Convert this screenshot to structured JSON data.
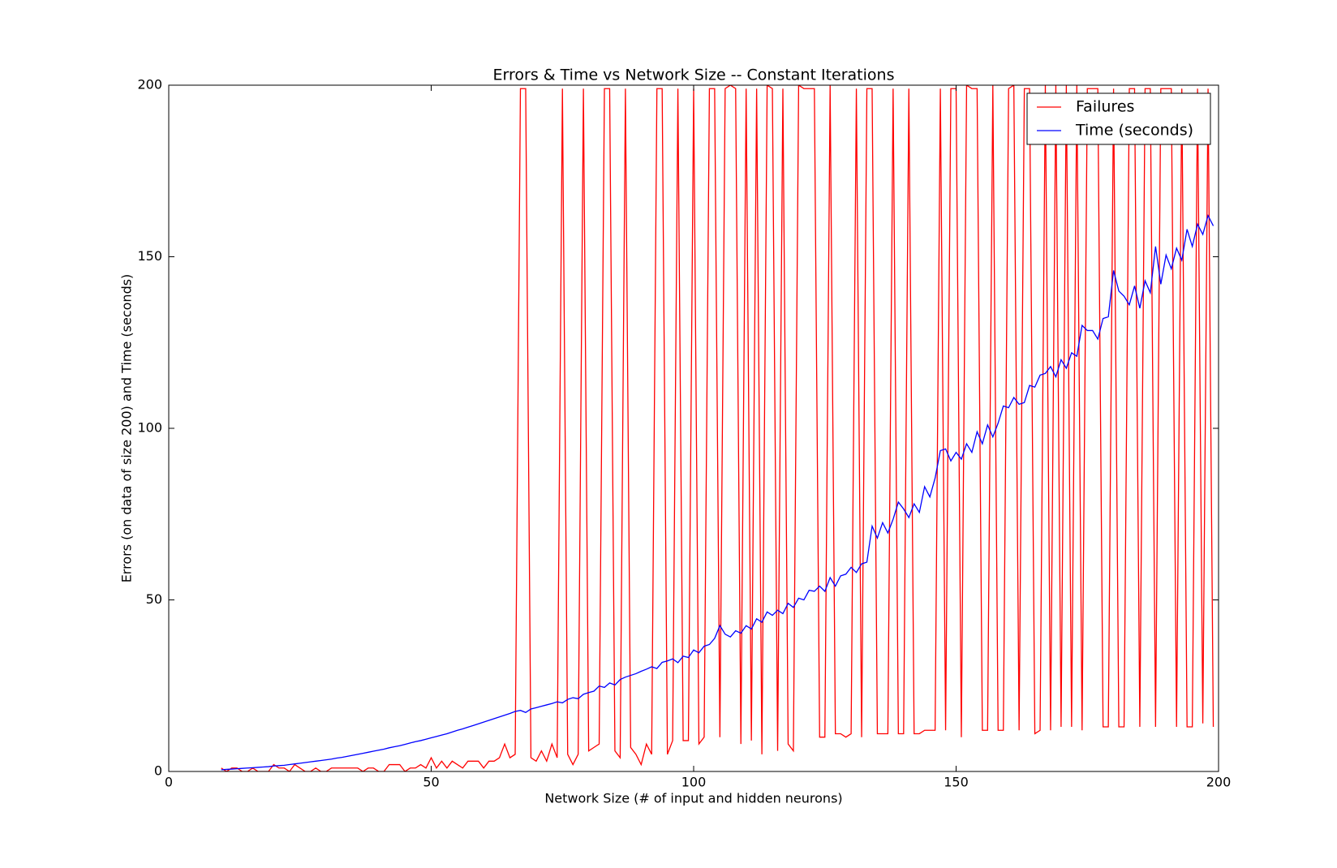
{
  "chart_data": {
    "type": "line",
    "title": "Errors & Time vs Network Size -- Constant Iterations",
    "xlabel": "Network Size (# of input and hidden neurons)",
    "ylabel": "Errors (on data of size 200) and Time (seconds)",
    "x": [
      10,
      11,
      12,
      13,
      14,
      15,
      16,
      17,
      18,
      19,
      20,
      21,
      22,
      23,
      24,
      25,
      26,
      27,
      28,
      29,
      30,
      31,
      32,
      33,
      34,
      35,
      36,
      37,
      38,
      39,
      40,
      41,
      42,
      43,
      44,
      45,
      46,
      47,
      48,
      49,
      50,
      51,
      52,
      53,
      54,
      55,
      56,
      57,
      58,
      59,
      60,
      61,
      62,
      63,
      64,
      65,
      66,
      67,
      68,
      69,
      70,
      71,
      72,
      73,
      74,
      75,
      76,
      77,
      78,
      79,
      80,
      81,
      82,
      83,
      84,
      85,
      86,
      87,
      88,
      89,
      90,
      91,
      92,
      93,
      94,
      95,
      96,
      97,
      98,
      99,
      100,
      101,
      102,
      103,
      104,
      105,
      106,
      107,
      108,
      109,
      110,
      111,
      112,
      113,
      114,
      115,
      116,
      117,
      118,
      119,
      120,
      121,
      122,
      123,
      124,
      125,
      126,
      127,
      128,
      129,
      130,
      131,
      132,
      133,
      134,
      135,
      136,
      137,
      138,
      139,
      140,
      141,
      142,
      143,
      144,
      145,
      146,
      147,
      148,
      149,
      150,
      151,
      152,
      153,
      154,
      155,
      156,
      157,
      158,
      159,
      160,
      161,
      162,
      163,
      164,
      165,
      166,
      167,
      168,
      169,
      170,
      171,
      172,
      173,
      174,
      175,
      176,
      177,
      178,
      179,
      180,
      181,
      182,
      183,
      184,
      185,
      186,
      187,
      188,
      189,
      190,
      191,
      192,
      193,
      194,
      195,
      196,
      197,
      198,
      199
    ],
    "series": [
      {
        "name": "Failures",
        "color": "#ff0000",
        "values": [
          1,
          0,
          1,
          1,
          0,
          0,
          1,
          0,
          0,
          0,
          2,
          1,
          1,
          0,
          2,
          1,
          0,
          0,
          1,
          0,
          0,
          1,
          1,
          1,
          1,
          1,
          1,
          0,
          1,
          1,
          0,
          0,
          2,
          2,
          2,
          0,
          1,
          1,
          2,
          1,
          4,
          1,
          3,
          1,
          3,
          2,
          1,
          3,
          3,
          3,
          1,
          3,
          3,
          4,
          8,
          4,
          5,
          199,
          199,
          4,
          3,
          6,
          3,
          8,
          4,
          199,
          5,
          2,
          5,
          199,
          6,
          7,
          8,
          199,
          199,
          6,
          4,
          199,
          7,
          5,
          2,
          8,
          5,
          199,
          199,
          5,
          9,
          199,
          9,
          9,
          199,
          8,
          10,
          199,
          199,
          10,
          199,
          200,
          199,
          8,
          199,
          9,
          199,
          5,
          200,
          199,
          6,
          199,
          8,
          6,
          200,
          199,
          199,
          199,
          10,
          10,
          200,
          11,
          11,
          10,
          11,
          199,
          10,
          199,
          199,
          11,
          11,
          11,
          199,
          11,
          11,
          199,
          11,
          11,
          12,
          12,
          12,
          199,
          12,
          199,
          199,
          10,
          200,
          199,
          199,
          12,
          12,
          200,
          12,
          12,
          199,
          200,
          12,
          199,
          199,
          11,
          12,
          200,
          12,
          200,
          13,
          200,
          13,
          200,
          12,
          199,
          199,
          199,
          13,
          13,
          199,
          13,
          13,
          199,
          199,
          13,
          199,
          199,
          13,
          199,
          199,
          199,
          13,
          199,
          13,
          13,
          199,
          14,
          199,
          13
        ]
      },
      {
        "name": "Time (seconds)",
        "color": "#0000ff",
        "values": [
          0.5,
          0.6,
          0.7,
          0.8,
          0.9,
          1.0,
          1.1,
          1.2,
          1.3,
          1.4,
          1.6,
          1.7,
          1.8,
          2.0,
          2.2,
          2.4,
          2.6,
          2.8,
          3.0,
          3.2,
          3.4,
          3.6,
          3.9,
          4.1,
          4.4,
          4.7,
          5.0,
          5.3,
          5.6,
          5.9,
          6.2,
          6.5,
          6.9,
          7.2,
          7.5,
          7.9,
          8.3,
          8.7,
          9.0,
          9.4,
          9.8,
          10.2,
          10.6,
          11.0,
          11.5,
          12.0,
          12.4,
          12.9,
          13.4,
          13.9,
          14.4,
          14.9,
          15.4,
          15.9,
          16.4,
          16.9,
          17.5,
          17.8,
          17.2,
          18.2,
          18.6,
          19.0,
          19.4,
          19.8,
          20.3,
          20.0,
          21.0,
          21.5,
          21.2,
          22.5,
          23.0,
          23.4,
          24.9,
          24.5,
          25.8,
          25.2,
          26.8,
          27.5,
          28.0,
          28.5,
          29.2,
          29.8,
          30.5,
          30.0,
          31.8,
          32.2,
          32.8,
          31.7,
          33.6,
          33.2,
          35.4,
          34.6,
          36.5,
          37.0,
          38.8,
          42.5,
          40.0,
          39.2,
          41.0,
          40.3,
          42.5,
          41.5,
          44.5,
          43.5,
          46.5,
          45.5,
          47.0,
          46.0,
          49.0,
          47.8,
          50.5,
          50.0,
          52.8,
          52.5,
          54.0,
          52.5,
          56.5,
          54.0,
          57.0,
          57.5,
          59.5,
          58.0,
          60.5,
          61.0,
          71.5,
          68.0,
          72.5,
          69.5,
          73.5,
          78.5,
          76.5,
          74.0,
          78.0,
          75.5,
          83.0,
          80.0,
          85.5,
          93.5,
          94.0,
          90.5,
          93.0,
          91.0,
          95.5,
          93.0,
          99.0,
          95.5,
          101.0,
          97.5,
          101.5,
          106.5,
          106.0,
          109.0,
          107.0,
          107.5,
          112.5,
          112.0,
          115.5,
          116.0,
          118.0,
          115.0,
          120.0,
          117.5,
          122.0,
          121.0,
          130.0,
          128.5,
          128.5,
          126.0,
          132.0,
          132.5,
          146.0,
          140.0,
          138.5,
          136.0,
          141.5,
          135.0,
          143.0,
          139.5,
          153.0,
          142.0,
          150.5,
          146.5,
          152.5,
          149.0,
          158.0,
          153.0,
          159.5,
          156.5,
          162.0,
          159.0
        ]
      }
    ],
    "xlim": [
      0,
      200
    ],
    "xticks": [
      0,
      50,
      100,
      150,
      200
    ],
    "ylim": [
      0,
      200
    ],
    "yticks": [
      0,
      50,
      100,
      150,
      200
    ],
    "legend": "upper right"
  }
}
